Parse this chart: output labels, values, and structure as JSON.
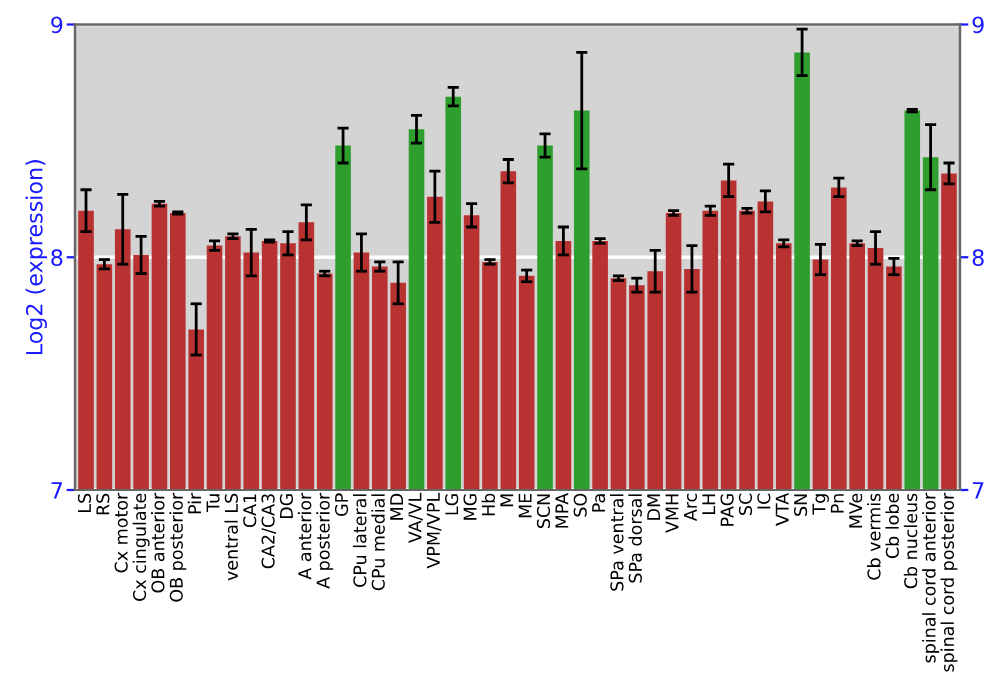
{
  "chart_data": {
    "type": "bar",
    "ylabel": "Log2 (expression)",
    "categories": [
      "LS",
      "RS",
      "Cx motor",
      "Cx cingulate",
      "OB anterior",
      "OB posterior",
      "Pir",
      "Tu",
      "ventral LS",
      "CA1",
      "CA2/CA3",
      "DG",
      "A anterior",
      "A posterior",
      "GP",
      "CPu lateral",
      "CPu medial",
      "MD",
      "VA/VL",
      "VPM/VPL",
      "LG",
      "MG",
      "Hb",
      "M",
      "ME",
      "SCN",
      "MPA",
      "SO",
      "Pa",
      "SPa ventral",
      "SPa dorsal",
      "DM",
      "VMH",
      "Arc",
      "LH",
      "PAG",
      "SC",
      "IC",
      "VTA",
      "SN",
      "Tg",
      "Pn",
      "MVe",
      "Cb vermis",
      "Cb lobe",
      "Cb nucleus",
      "spinal cord anterior",
      "spinal cord posterior"
    ],
    "values": [
      8.2,
      7.97,
      8.12,
      8.01,
      8.23,
      8.19,
      7.69,
      8.05,
      8.09,
      8.02,
      8.07,
      8.06,
      8.15,
      7.93,
      8.48,
      8.02,
      7.96,
      7.89,
      8.55,
      8.26,
      8.69,
      8.18,
      7.98,
      8.37,
      7.92,
      8.48,
      8.07,
      8.63,
      8.07,
      7.91,
      7.88,
      7.94,
      8.19,
      7.95,
      8.2,
      8.33,
      8.2,
      8.24,
      8.06,
      8.88,
      7.99,
      8.3,
      8.06,
      8.04,
      7.96,
      8.63,
      8.43,
      8.36
    ],
    "errors": [
      0.09,
      0.02,
      0.15,
      0.08,
      0.01,
      0.005,
      0.11,
      0.02,
      0.01,
      0.1,
      0.005,
      0.05,
      0.075,
      0.01,
      0.075,
      0.08,
      0.02,
      0.09,
      0.06,
      0.11,
      0.04,
      0.05,
      0.01,
      0.05,
      0.025,
      0.05,
      0.06,
      0.25,
      0.01,
      0.01,
      0.03,
      0.09,
      0.01,
      0.1,
      0.02,
      0.07,
      0.01,
      0.045,
      0.015,
      0.1,
      0.065,
      0.04,
      0.01,
      0.07,
      0.035,
      0.005,
      0.14,
      0.045
    ],
    "colors": [
      "#b83232",
      "#b83232",
      "#b83232",
      "#b83232",
      "#b83232",
      "#b83232",
      "#b83232",
      "#b83232",
      "#b83232",
      "#b83232",
      "#b83232",
      "#b83232",
      "#b83232",
      "#b83232",
      "#2e9e2e",
      "#b83232",
      "#b83232",
      "#b83232",
      "#2e9e2e",
      "#b83232",
      "#2e9e2e",
      "#b83232",
      "#b83232",
      "#b83232",
      "#b83232",
      "#2e9e2e",
      "#b83232",
      "#2e9e2e",
      "#b83232",
      "#b83232",
      "#b83232",
      "#b83232",
      "#b83232",
      "#b83232",
      "#b83232",
      "#b83232",
      "#b83232",
      "#b83232",
      "#b83232",
      "#2e9e2e",
      "#b83232",
      "#b83232",
      "#b83232",
      "#b83232",
      "#b83232",
      "#2e9e2e",
      "#2e9e2e",
      "#b83232"
    ],
    "ylim": [
      7,
      9
    ],
    "yticks": [
      7,
      8,
      9
    ],
    "y2lim": [
      7,
      9
    ],
    "y2ticks": [
      7,
      8,
      9
    ],
    "grid": "y"
  }
}
